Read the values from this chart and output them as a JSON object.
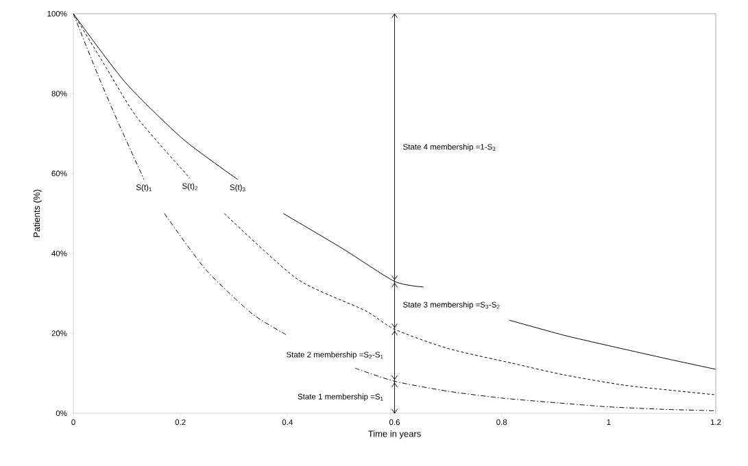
{
  "chart_data": {
    "type": "line",
    "xlabel": "Time in years",
    "ylabel": "Patients (%)",
    "xlim": [
      0,
      1.2
    ],
    "ylim": [
      0,
      100
    ],
    "xticks": [
      0,
      0.2,
      0.4,
      0.6,
      0.8,
      1,
      1.2
    ],
    "yticks": [
      {
        "value": 0,
        "label": "0%"
      },
      {
        "value": 20,
        "label": "20%"
      },
      {
        "value": 40,
        "label": "40%"
      },
      {
        "value": 60,
        "label": "60%"
      },
      {
        "value": 80,
        "label": "80%"
      },
      {
        "value": 100,
        "label": "100%"
      }
    ],
    "grid": false,
    "legend": false,
    "marker": "none",
    "ref_lines": [
      {
        "axis": "x",
        "value": 0.6,
        "color": "#000000"
      }
    ],
    "series": [
      {
        "name": "S(t)$_{1}$",
        "color": "#000000",
        "line_style": "dashdot",
        "x": [
          0,
          0.046,
          0.083,
          0.132,
          0.15,
          0.17,
          0.247,
          0.333,
          0.397,
          0.46,
          0.526,
          0.6,
          0.7,
          0.8,
          0.904,
          1.0,
          1.1,
          1.2
        ],
        "values": [
          100,
          84.6,
          73,
          58.5,
          null,
          50,
          36,
          25,
          19.7,
          null,
          11.3,
          8,
          5.5,
          3.8,
          2.6,
          1.6,
          1,
          0.6
        ]
      },
      {
        "name": "S(t)$_{2}$",
        "color": "#000000",
        "line_style": "dashed",
        "x": [
          0,
          0.055,
          0.119,
          0.218,
          0.25,
          0.282,
          0.418,
          0.545,
          0.6,
          0.7,
          0.82,
          0.92,
          1.03,
          1.12,
          1.2
        ],
        "values": [
          100,
          87.9,
          74,
          58.8,
          null,
          50,
          33.6,
          25.7,
          21,
          16.2,
          12.5,
          9.5,
          7,
          5.7,
          4.6
        ]
      },
      {
        "name": "S(t)$_{3}$",
        "color": "#000000",
        "line_style": "solid",
        "x": [
          0,
          0.097,
          0.205,
          0.307,
          0.35,
          0.392,
          0.503,
          0.6,
          0.654,
          0.73,
          0.814,
          0.92,
          1.03,
          1.12,
          1.2
        ],
        "values": [
          100,
          82.8,
          68.6,
          58.5,
          null,
          50,
          41.2,
          33,
          31.6,
          null,
          23.3,
          19.4,
          16,
          13.3,
          11
        ]
      }
    ],
    "annotations": [
      "State 1 membership =S$_{1}$",
      "State 2 membership =S$_{2}$-S$_{1}$",
      "State 3 membership =S$_{3}$-S$_{2}$",
      "State 4 membership =1-S$_{3}$"
    ]
  }
}
